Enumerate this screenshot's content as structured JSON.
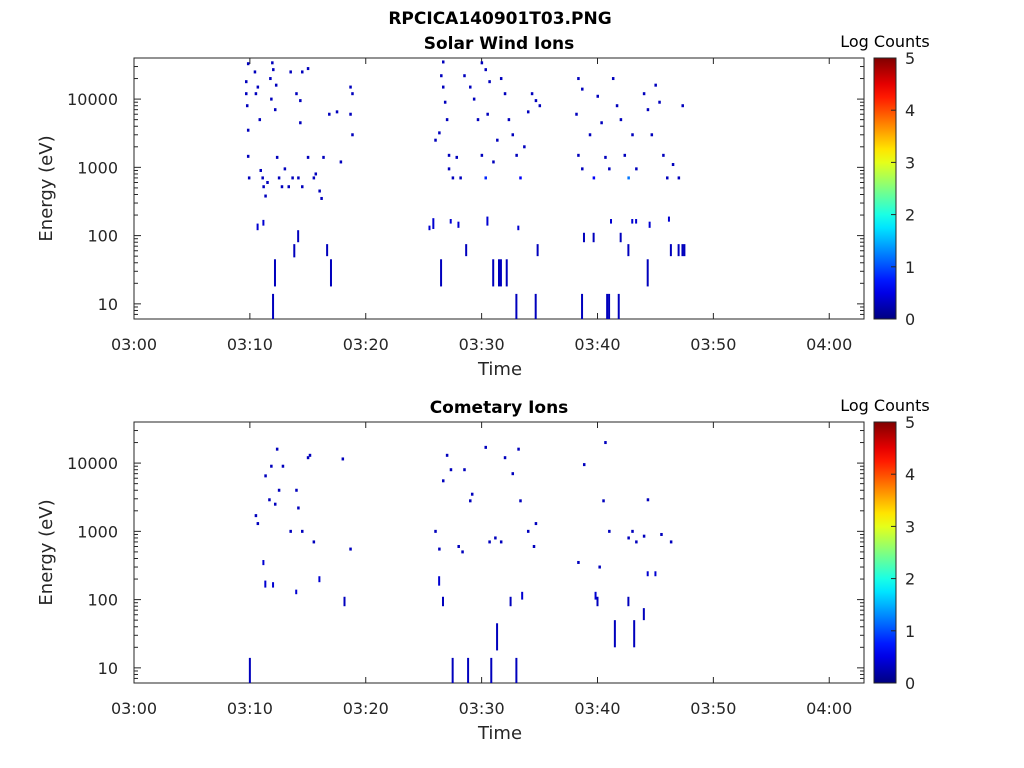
{
  "figure": {
    "title": "RPCICA140901T03.PNG"
  },
  "chart_data": [
    {
      "type": "heatmap",
      "title": "Solar Wind Ions",
      "xlabel": "Time",
      "ylabel": "Energy (eV)",
      "x_ticks": [
        "03:00",
        "03:10",
        "03:20",
        "03:30",
        "03:40",
        "03:50",
        "04:00"
      ],
      "y_ticks": [
        "10",
        "100",
        "1000",
        "10000"
      ],
      "y_scale": "log",
      "xlim": [
        "03:00",
        "04:03"
      ],
      "ylim": [
        6,
        40000
      ],
      "colorbar": {
        "label": "Log Counts",
        "ticks": [
          "0",
          "1",
          "2",
          "3",
          "4",
          "5"
        ],
        "range": [
          0,
          5
        ],
        "colormap": "jet"
      },
      "points": [
        [
          "03:09:50",
          33000,
          0.3
        ],
        [
          "03:09:40",
          18000,
          0.3
        ],
        [
          "03:09:40",
          12000,
          0.3
        ],
        [
          "03:09:45",
          8000,
          0.3
        ],
        [
          "03:09:50",
          3500,
          0.3
        ],
        [
          "03:09:50",
          1450,
          0.3
        ],
        [
          "03:09:55",
          700,
          0.3
        ],
        [
          "03:10:25",
          25000,
          0.3
        ],
        [
          "03:10:30",
          12000,
          0.3
        ],
        [
          "03:10:40",
          15000,
          0.3
        ],
        [
          "03:10:50",
          5000,
          0.3
        ],
        [
          "03:10:55",
          900,
          0.3
        ],
        [
          "03:11:05",
          700,
          0.3
        ],
        [
          "03:11:10",
          520,
          0.3
        ],
        [
          "03:11:20",
          380,
          0.3
        ],
        [
          "03:11:30",
          600,
          0.3
        ],
        [
          "03:11:45",
          20000,
          0.3
        ],
        [
          "03:11:55",
          34000,
          0.3
        ],
        [
          "03:12:00",
          27000,
          0.3
        ],
        [
          "03:11:50",
          10000,
          0.3
        ],
        [
          "03:12:15",
          16000,
          0.3
        ],
        [
          "03:12:10",
          7000,
          0.3
        ],
        [
          "03:12:20",
          1400,
          0.3
        ],
        [
          "03:12:30",
          700,
          0.3
        ],
        [
          "03:12:45",
          520,
          0.3
        ],
        [
          "03:13:00",
          950,
          0.3
        ],
        [
          "03:13:20",
          520,
          0.3
        ],
        [
          "03:13:40",
          700,
          0.3
        ],
        [
          "03:14:10",
          700,
          0.3
        ],
        [
          "03:14:30",
          520,
          0.3
        ],
        [
          "03:13:30",
          25000,
          0.3
        ],
        [
          "03:14:00",
          12000,
          0.3
        ],
        [
          "03:14:20",
          9500,
          0.3
        ],
        [
          "03:14:30",
          25000,
          0.3
        ],
        [
          "03:15:00",
          28000,
          0.3
        ],
        [
          "03:14:20",
          4500,
          0.3
        ],
        [
          "03:15:00",
          1400,
          0.3
        ],
        [
          "03:15:30",
          700,
          0.3
        ],
        [
          "03:15:40",
          800,
          0.3
        ],
        [
          "03:16:00",
          450,
          0.3
        ],
        [
          "03:16:10",
          350,
          0.3
        ],
        [
          "03:16:20",
          1400,
          0.3
        ],
        [
          "03:16:50",
          6000,
          0.3
        ],
        [
          "03:17:30",
          6500,
          0.3
        ],
        [
          "03:17:50",
          1200,
          0.3
        ],
        [
          "03:18:40",
          15000,
          0.3
        ],
        [
          "03:18:50",
          12000,
          0.3
        ],
        [
          "03:18:40",
          6000,
          0.3
        ],
        [
          "03:18:50",
          3000,
          0.3
        ],
        [
          "03:26:00",
          2500,
          0.3
        ],
        [
          "03:26:20",
          3200,
          0.3
        ],
        [
          "03:26:40",
          35000,
          0.3
        ],
        [
          "03:26:30",
          22000,
          0.3
        ],
        [
          "03:26:40",
          15000,
          0.3
        ],
        [
          "03:26:50",
          9000,
          0.3
        ],
        [
          "03:27:00",
          5000,
          0.3
        ],
        [
          "03:27:10",
          1500,
          0.3
        ],
        [
          "03:27:10",
          950,
          0.3
        ],
        [
          "03:27:30",
          700,
          0.3
        ],
        [
          "03:27:50",
          1400,
          0.3
        ],
        [
          "03:28:10",
          700,
          0.3
        ],
        [
          "03:28:30",
          22000,
          0.3
        ],
        [
          "03:29:00",
          15000,
          0.3
        ],
        [
          "03:29:20",
          10000,
          0.3
        ],
        [
          "03:29:40",
          5000,
          0.3
        ],
        [
          "03:30:00",
          34000,
          0.3
        ],
        [
          "03:30:20",
          27000,
          0.3
        ],
        [
          "03:30:40",
          18000,
          0.3
        ],
        [
          "03:30:30",
          6000,
          0.3
        ],
        [
          "03:30:00",
          1500,
          0.3
        ],
        [
          "03:30:20",
          700,
          0.8
        ],
        [
          "03:31:00",
          1200,
          0.3
        ],
        [
          "03:31:20",
          2500,
          0.3
        ],
        [
          "03:31:40",
          20000,
          0.3
        ],
        [
          "03:32:00",
          12000,
          0.3
        ],
        [
          "03:32:20",
          5000,
          0.3
        ],
        [
          "03:32:40",
          3000,
          0.3
        ],
        [
          "03:33:00",
          1500,
          0.3
        ],
        [
          "03:33:20",
          700,
          0.6
        ],
        [
          "03:33:40",
          2000,
          0.3
        ],
        [
          "03:34:00",
          6500,
          0.3
        ],
        [
          "03:34:20",
          12000,
          0.3
        ],
        [
          "03:34:40",
          9500,
          0.3
        ],
        [
          "03:35:00",
          8000,
          0.3
        ],
        [
          "03:38:20",
          20000,
          0.3
        ],
        [
          "03:38:40",
          14000,
          0.3
        ],
        [
          "03:38:10",
          6000,
          0.3
        ],
        [
          "03:38:20",
          1500,
          0.3
        ],
        [
          "03:38:40",
          950,
          0.3
        ],
        [
          "03:39:20",
          3000,
          0.3
        ],
        [
          "03:39:40",
          700,
          0.6
        ],
        [
          "03:40:00",
          11000,
          0.3
        ],
        [
          "03:40:20",
          4500,
          0.3
        ],
        [
          "03:40:40",
          1400,
          0.3
        ],
        [
          "03:41:00",
          950,
          0.3
        ],
        [
          "03:41:20",
          20000,
          0.3
        ],
        [
          "03:41:40",
          8000,
          0.3
        ],
        [
          "03:42:00",
          5000,
          0.3
        ],
        [
          "03:42:20",
          1500,
          0.3
        ],
        [
          "03:42:40",
          700,
          1.2
        ],
        [
          "03:43:00",
          3000,
          0.3
        ],
        [
          "03:43:20",
          950,
          0.3
        ],
        [
          "03:44:00",
          12000,
          0.3
        ],
        [
          "03:44:20",
          7000,
          0.3
        ],
        [
          "03:44:40",
          3000,
          0.3
        ],
        [
          "03:45:00",
          16000,
          0.3
        ],
        [
          "03:45:20",
          9000,
          0.3
        ],
        [
          "03:45:40",
          1500,
          0.3
        ],
        [
          "03:46:00",
          700,
          0.3
        ],
        [
          "03:46:30",
          1100,
          0.3
        ],
        [
          "03:47:00",
          700,
          0.3
        ],
        [
          "03:47:20",
          8000,
          0.3
        ]
      ],
      "bars": [
        [
          "03:10:40",
          120,
          150,
          0.4
        ],
        [
          "03:11:10",
          140,
          170,
          0.4
        ],
        [
          "03:12:00",
          6,
          14,
          0.3
        ],
        [
          "03:12:10",
          18,
          45,
          0.3
        ],
        [
          "03:13:50",
          48,
          75,
          0.3
        ],
        [
          "03:14:10",
          80,
          120,
          0.3
        ],
        [
          "03:16:40",
          50,
          75,
          0.3
        ],
        [
          "03:17:00",
          18,
          45,
          0.3
        ],
        [
          "03:25:30",
          120,
          140,
          0.4
        ],
        [
          "03:25:50",
          125,
          180,
          0.4
        ],
        [
          "03:26:30",
          18,
          45,
          0.3
        ],
        [
          "03:27:20",
          150,
          175,
          0.4
        ],
        [
          "03:28:00",
          130,
          160,
          0.4
        ],
        [
          "03:28:40",
          50,
          75,
          0.3
        ],
        [
          "03:30:30",
          140,
          190,
          0.4
        ],
        [
          "03:31:00",
          18,
          45,
          0.3
        ],
        [
          "03:31:30",
          18,
          45,
          0.3
        ],
        [
          "03:31:40",
          18,
          45,
          0.3
        ],
        [
          "03:32:10",
          18,
          45,
          0.3
        ],
        [
          "03:33:00",
          6,
          14,
          0.3
        ],
        [
          "03:33:10",
          120,
          140,
          0.4
        ],
        [
          "03:34:40",
          6,
          14,
          0.3
        ],
        [
          "03:34:50",
          50,
          75,
          0.3
        ],
        [
          "03:38:40",
          6,
          14,
          0.3
        ],
        [
          "03:38:50",
          80,
          110,
          0.3
        ],
        [
          "03:39:40",
          80,
          110,
          0.3
        ],
        [
          "03:40:50",
          6,
          14,
          0.3
        ],
        [
          "03:41:00",
          6,
          14,
          0.3
        ],
        [
          "03:41:10",
          150,
          175,
          0.4
        ],
        [
          "03:41:50",
          6,
          14,
          0.3
        ],
        [
          "03:42:00",
          80,
          110,
          0.3
        ],
        [
          "03:42:40",
          50,
          75,
          0.3
        ],
        [
          "03:43:00",
          150,
          175,
          0.4
        ],
        [
          "03:43:20",
          150,
          175,
          0.4
        ],
        [
          "03:44:20",
          18,
          45,
          0.3
        ],
        [
          "03:44:30",
          130,
          160,
          0.4
        ],
        [
          "03:46:10",
          160,
          190,
          0.4
        ],
        [
          "03:46:20",
          50,
          75,
          0.3
        ],
        [
          "03:47:00",
          50,
          75,
          0.3
        ],
        [
          "03:47:20",
          50,
          75,
          0.3
        ],
        [
          "03:47:30",
          50,
          75,
          0.3
        ]
      ]
    },
    {
      "type": "heatmap",
      "title": "Cometary Ions",
      "xlabel": "Time",
      "ylabel": "Energy (eV)",
      "x_ticks": [
        "03:00",
        "03:10",
        "03:20",
        "03:30",
        "03:40",
        "03:50",
        "04:00"
      ],
      "y_ticks": [
        "10",
        "100",
        "1000",
        "10000"
      ],
      "y_scale": "log",
      "xlim": [
        "03:00",
        "04:03"
      ],
      "ylim": [
        6,
        40000
      ],
      "colorbar": {
        "label": "Log Counts",
        "ticks": [
          "0",
          "1",
          "2",
          "3",
          "4",
          "5"
        ],
        "range": [
          0,
          5
        ],
        "colormap": "jet"
      },
      "points": [
        [
          "03:10:30",
          1700,
          0.3
        ],
        [
          "03:10:40",
          1300,
          0.3
        ],
        [
          "03:11:20",
          6500,
          0.3
        ],
        [
          "03:11:40",
          2900,
          0.3
        ],
        [
          "03:11:50",
          9000,
          0.3
        ],
        [
          "03:12:10",
          2500,
          0.3
        ],
        [
          "03:12:20",
          16000,
          0.3
        ],
        [
          "03:12:30",
          4000,
          0.3
        ],
        [
          "03:12:50",
          9000,
          0.3
        ],
        [
          "03:13:30",
          1000,
          0.3
        ],
        [
          "03:14:00",
          4000,
          0.3
        ],
        [
          "03:14:10",
          2200,
          0.3
        ],
        [
          "03:14:30",
          1000,
          0.3
        ],
        [
          "03:15:00",
          12000,
          0.3
        ],
        [
          "03:15:10",
          13000,
          0.3
        ],
        [
          "03:15:30",
          700,
          0.3
        ],
        [
          "03:18:00",
          11500,
          0.3
        ],
        [
          "03:18:40",
          550,
          0.3
        ],
        [
          "03:26:00",
          1000,
          0.3
        ],
        [
          "03:26:20",
          550,
          0.3
        ],
        [
          "03:26:40",
          5500,
          0.3
        ],
        [
          "03:27:00",
          13000,
          0.3
        ],
        [
          "03:27:20",
          8000,
          0.3
        ],
        [
          "03:28:30",
          8000,
          0.3
        ],
        [
          "03:28:00",
          600,
          0.3
        ],
        [
          "03:28:20",
          500,
          0.3
        ],
        [
          "03:29:00",
          2800,
          0.3
        ],
        [
          "03:29:10",
          3500,
          0.3
        ],
        [
          "03:30:20",
          17000,
          0.3
        ],
        [
          "03:30:40",
          700,
          0.3
        ],
        [
          "03:31:10",
          800,
          0.3
        ],
        [
          "03:31:40",
          700,
          0.3
        ],
        [
          "03:32:00",
          12000,
          0.3
        ],
        [
          "03:32:40",
          7000,
          0.3
        ],
        [
          "03:33:10",
          16000,
          0.3
        ],
        [
          "03:33:20",
          2800,
          0.3
        ],
        [
          "03:34:00",
          1000,
          0.3
        ],
        [
          "03:34:30",
          600,
          0.3
        ],
        [
          "03:34:40",
          1300,
          0.3
        ],
        [
          "03:38:20",
          350,
          0.3
        ],
        [
          "03:38:50",
          9500,
          0.3
        ],
        [
          "03:40:10",
          300,
          0.3
        ],
        [
          "03:40:30",
          2800,
          0.3
        ],
        [
          "03:40:40",
          20000,
          0.3
        ],
        [
          "03:41:00",
          1000,
          0.3
        ],
        [
          "03:42:40",
          800,
          0.3
        ],
        [
          "03:43:00",
          1000,
          0.3
        ],
        [
          "03:43:20",
          700,
          0.3
        ],
        [
          "03:44:00",
          850,
          0.3
        ],
        [
          "03:44:20",
          2900,
          0.3
        ],
        [
          "03:45:30",
          900,
          0.3
        ],
        [
          "03:46:20",
          700,
          0.3
        ]
      ],
      "bars": [
        [
          "03:10:00",
          6,
          14,
          0.3
        ],
        [
          "03:11:20",
          150,
          190,
          0.4
        ],
        [
          "03:11:10",
          320,
          380,
          0.4
        ],
        [
          "03:12:00",
          150,
          180,
          0.4
        ],
        [
          "03:14:00",
          120,
          140,
          0.4
        ],
        [
          "03:16:00",
          180,
          220,
          0.4
        ],
        [
          "03:18:10",
          80,
          110,
          0.3
        ],
        [
          "03:26:20",
          160,
          220,
          0.4
        ],
        [
          "03:26:40",
          80,
          110,
          0.3
        ],
        [
          "03:27:30",
          6,
          14,
          0.3
        ],
        [
          "03:28:50",
          6,
          14,
          0.3
        ],
        [
          "03:30:50",
          6,
          14,
          0.3
        ],
        [
          "03:31:20",
          18,
          45,
          0.3
        ],
        [
          "03:32:30",
          80,
          110,
          0.3
        ],
        [
          "03:33:00",
          6,
          14,
          0.3
        ],
        [
          "03:33:30",
          100,
          130,
          0.4
        ],
        [
          "03:39:50",
          100,
          130,
          0.4
        ],
        [
          "03:40:00",
          80,
          110,
          0.3
        ],
        [
          "03:41:30",
          20,
          50,
          0.3
        ],
        [
          "03:42:40",
          80,
          110,
          0.3
        ],
        [
          "03:43:10",
          20,
          50,
          0.3
        ],
        [
          "03:44:00",
          50,
          75,
          0.3
        ],
        [
          "03:44:20",
          220,
          260,
          0.4
        ],
        [
          "03:45:00",
          220,
          260,
          0.4
        ]
      ]
    }
  ]
}
